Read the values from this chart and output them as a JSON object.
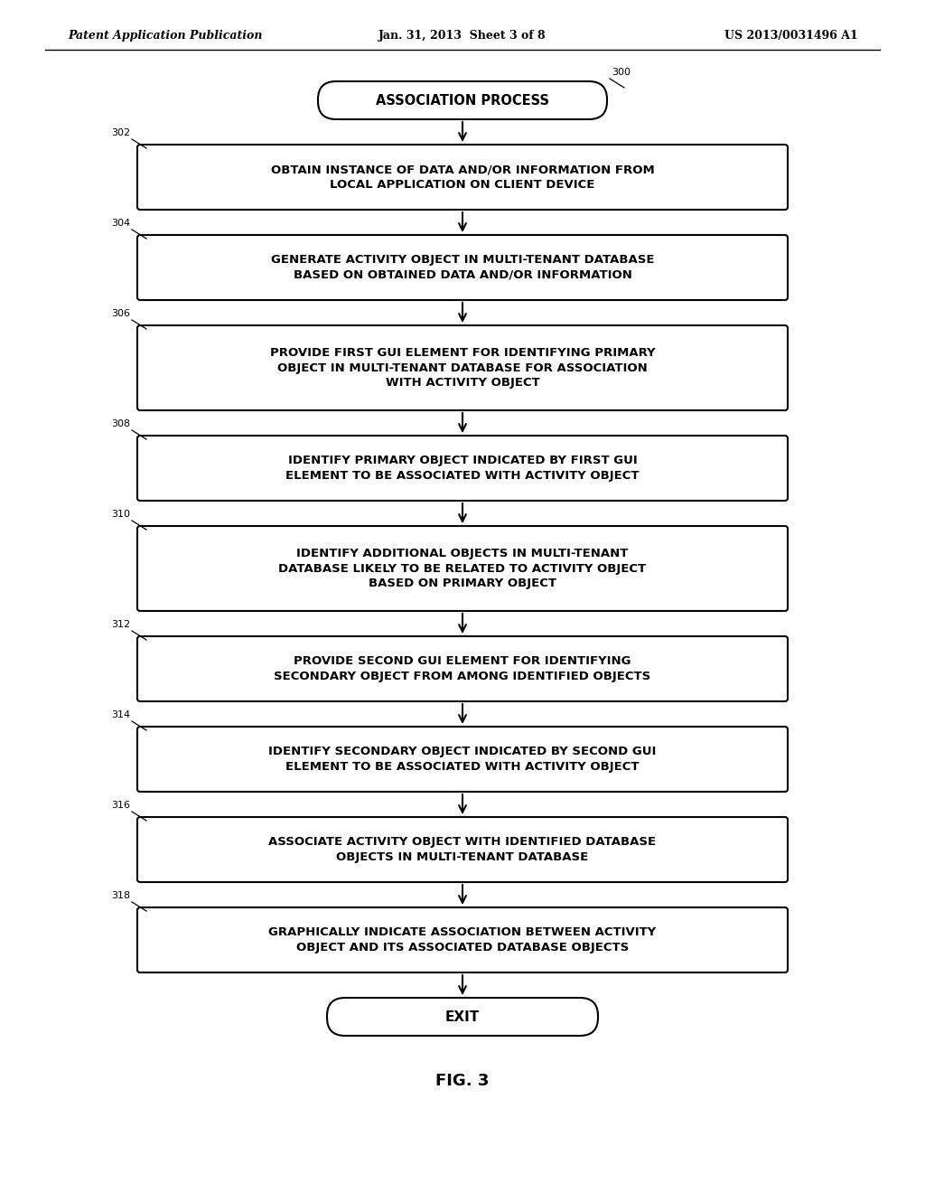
{
  "header_left": "Patent Application Publication",
  "header_center": "Jan. 31, 2013  Sheet 3 of 8",
  "header_right": "US 2013/0031496 A1",
  "title": "FIG. 3",
  "bg_color": "#ffffff",
  "start_num": "300",
  "start_text": "ASSOCIATION PROCESS",
  "end_text": "EXIT",
  "steps": [
    {
      "num": "302",
      "text": "OBTAIN INSTANCE OF DATA AND/OR INFORMATION FROM\nLOCAL APPLICATION ON CLIENT DEVICE",
      "lines": 2
    },
    {
      "num": "304",
      "text": "GENERATE ACTIVITY OBJECT IN MULTI-TENANT DATABASE\nBASED ON OBTAINED DATA AND/OR INFORMATION",
      "lines": 2
    },
    {
      "num": "306",
      "text": "PROVIDE FIRST GUI ELEMENT FOR IDENTIFYING PRIMARY\nOBJECT IN MULTI-TENANT DATABASE FOR ASSOCIATION\nWITH ACTIVITY OBJECT",
      "lines": 3
    },
    {
      "num": "308",
      "text": "IDENTIFY PRIMARY OBJECT INDICATED BY FIRST GUI\nELEMENT TO BE ASSOCIATED WITH ACTIVITY OBJECT",
      "lines": 2
    },
    {
      "num": "310",
      "text": "IDENTIFY ADDITIONAL OBJECTS IN MULTI-TENANT\nDATABASE LIKELY TO BE RELATED TO ACTIVITY OBJECT\nBASED ON PRIMARY OBJECT",
      "lines": 3
    },
    {
      "num": "312",
      "text": "PROVIDE SECOND GUI ELEMENT FOR IDENTIFYING\nSECONDARY OBJECT FROM AMONG IDENTIFIED OBJECTS",
      "lines": 2
    },
    {
      "num": "314",
      "text": "IDENTIFY SECONDARY OBJECT INDICATED BY SECOND GUI\nELEMENT TO BE ASSOCIATED WITH ACTIVITY OBJECT",
      "lines": 2
    },
    {
      "num": "316",
      "text": "ASSOCIATE ACTIVITY OBJECT WITH IDENTIFIED DATABASE\nOBJECTS IN MULTI-TENANT DATABASE",
      "lines": 2
    },
    {
      "num": "318",
      "text": "GRAPHICALLY INDICATE ASSOCIATION BETWEEN ACTIVITY\nOBJECT AND ITS ASSOCIATED DATABASE OBJECTS",
      "lines": 2
    }
  ]
}
